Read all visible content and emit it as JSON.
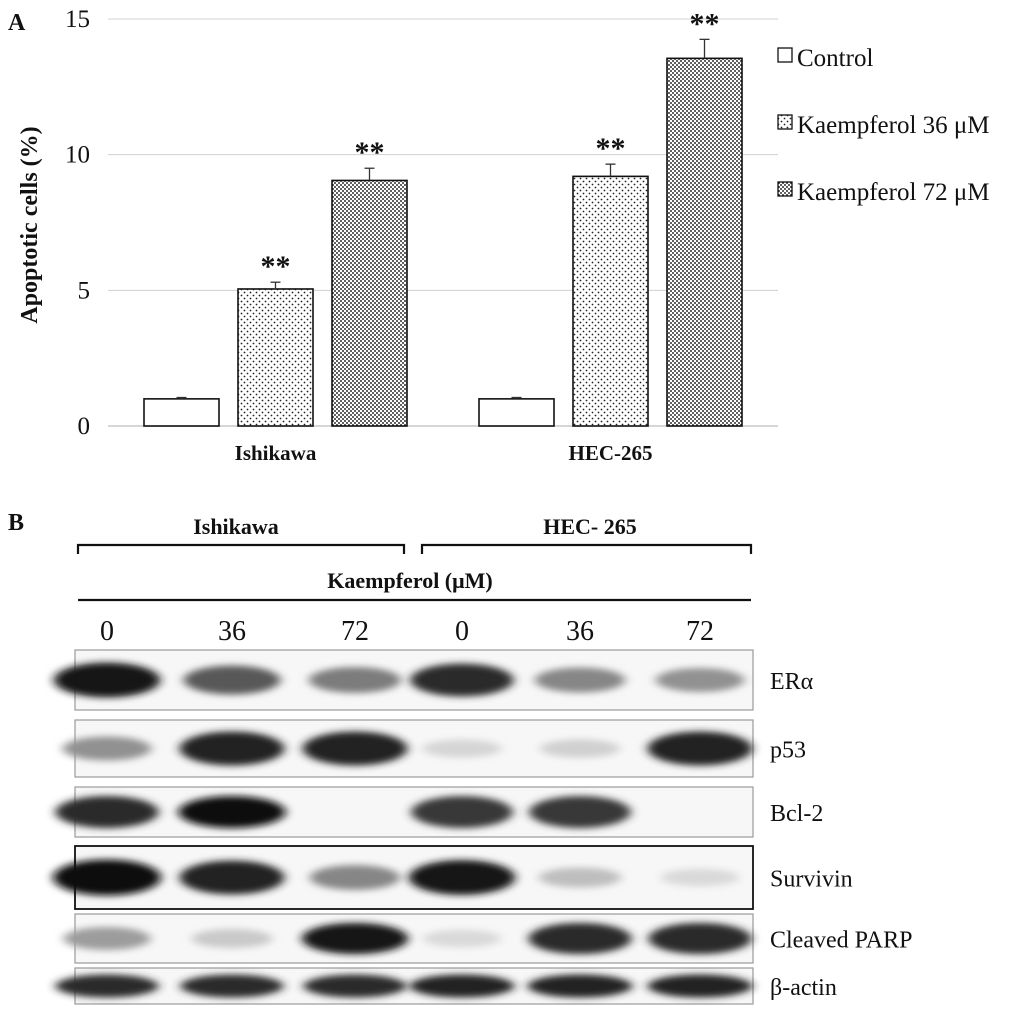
{
  "panel_a": {
    "letter": "A",
    "chart_data": {
      "type": "bar",
      "title": "",
      "xlabel": "",
      "ylabel": "Apoptotic cells (%)",
      "ylim": [
        0,
        15
      ],
      "yticks": [
        0,
        5,
        10,
        15
      ],
      "grid": true,
      "legend_position": "right",
      "categories": [
        "Ishikawa",
        "HEC-265"
      ],
      "series": [
        {
          "name": "Control",
          "values": [
            1.0,
            1.0
          ],
          "errors": [
            0.05,
            0.05
          ],
          "pattern": "none",
          "annotations": [
            "",
            ""
          ]
        },
        {
          "name": "Kaempferol 36 μM",
          "values": [
            5.05,
            9.2
          ],
          "errors": [
            0.25,
            0.45
          ],
          "pattern": "sparse-dots",
          "annotations": [
            "**",
            "**"
          ]
        },
        {
          "name": "Kaempferol 72 μM",
          "values": [
            9.05,
            13.55
          ],
          "errors": [
            0.45,
            0.7
          ],
          "pattern": "dense-dots",
          "annotations": [
            "**",
            "**"
          ]
        }
      ]
    }
  },
  "panel_b": {
    "letter": "B",
    "groups": [
      "Ishikawa",
      "HEC- 265"
    ],
    "treatment_label": "Kaempferol (μM)",
    "doses": [
      "0",
      "36",
      "72",
      "0",
      "36",
      "72"
    ],
    "proteins": [
      {
        "name": "ERα",
        "bands": [
          0.95,
          0.65,
          0.5,
          0.85,
          0.45,
          0.4
        ]
      },
      {
        "name": "p53",
        "bands": [
          0.4,
          0.9,
          0.9,
          0.1,
          0.12,
          0.9
        ]
      },
      {
        "name": "Bcl-2",
        "bands": [
          0.85,
          0.98,
          0.0,
          0.8,
          0.8,
          0.0
        ]
      },
      {
        "name": "Survivin",
        "bands": [
          1.0,
          0.9,
          0.45,
          0.95,
          0.2,
          0.08
        ]
      },
      {
        "name": "Cleaved PARP",
        "bands": [
          0.35,
          0.15,
          0.95,
          0.08,
          0.85,
          0.85
        ]
      },
      {
        "name": "β-actin",
        "bands": [
          0.85,
          0.85,
          0.85,
          0.9,
          0.9,
          0.9
        ]
      }
    ]
  }
}
